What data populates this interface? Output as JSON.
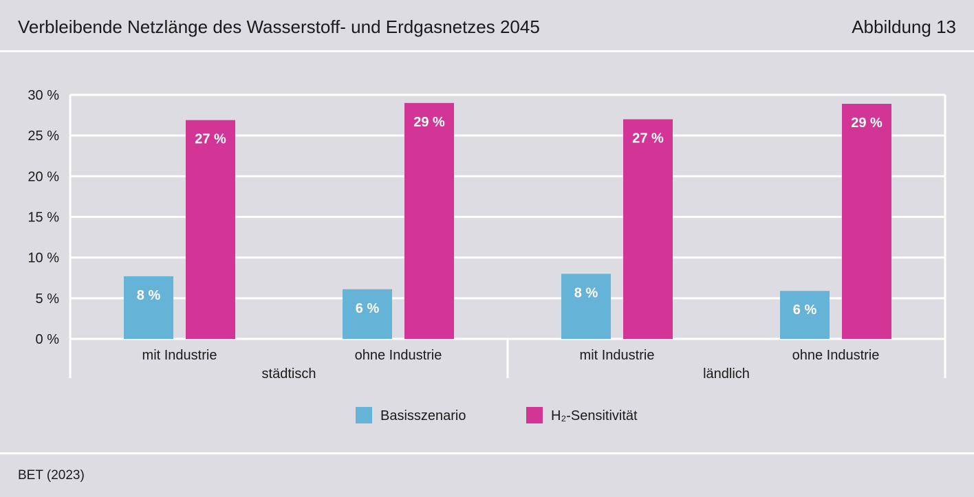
{
  "header": {
    "title": "Verbleibende Netzlänge des Wasserstoff- und Erdgasnetzes 2045",
    "figure_label": "Abbildung 13"
  },
  "footer": {
    "source": "BET (2023)"
  },
  "colors": {
    "background": "#dddce2",
    "basis": "#65b3d6",
    "h2": "#d23596",
    "grid": "#ffffff"
  },
  "chart_data": {
    "type": "bar",
    "title": "",
    "xlabel": "",
    "ylabel": "",
    "ylim": [
      0,
      30
    ],
    "yticks": [
      0,
      5,
      10,
      15,
      20,
      25,
      30
    ],
    "ytick_labels": [
      "0 %",
      "5 %",
      "10 %",
      "15 %",
      "20 %",
      "25 %",
      "30 %"
    ],
    "grid": true,
    "legend_position": "bottom",
    "groups": [
      {
        "label": "städtisch",
        "categories": [
          "mit Industrie",
          "ohne Industrie"
        ]
      },
      {
        "label": "ländlich",
        "categories": [
          "mit Industrie",
          "ohne Industrie"
        ]
      }
    ],
    "categories": [
      "mit Industrie",
      "ohne Industrie",
      "mit Industrie",
      "ohne Industrie"
    ],
    "series": [
      {
        "name": "Basisszenario",
        "color": "#65b3d6",
        "values": [
          7.7,
          6.1,
          8.0,
          5.9
        ],
        "labels": [
          "8 %",
          "6 %",
          "8 %",
          "6 %"
        ]
      },
      {
        "name": "H₂-Sensitivität",
        "color": "#d23596",
        "values": [
          26.9,
          29.0,
          27.0,
          28.9
        ],
        "labels": [
          "27 %",
          "29 %",
          "27 %",
          "29 %"
        ]
      }
    ]
  }
}
